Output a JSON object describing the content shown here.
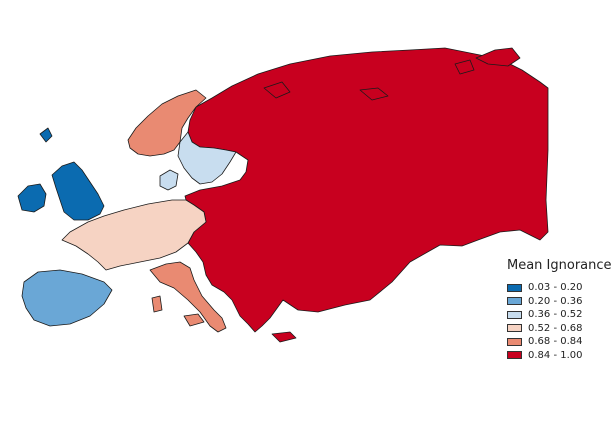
{
  "legend": {
    "title": "Mean Ignorance",
    "classes": [
      {
        "label": "0.03 - 0.20",
        "color": "#0b6bb0"
      },
      {
        "label": "0.20 - 0.36",
        "color": "#6aa7d6"
      },
      {
        "label": "0.36 - 0.52",
        "color": "#c8ddef"
      },
      {
        "label": "0.52 - 0.68",
        "color": "#f6d3c3"
      },
      {
        "label": "0.68 - 0.84",
        "color": "#e98a72"
      },
      {
        "label": "0.84 - 1.00",
        "color": "#c8001f"
      }
    ]
  },
  "regions": [
    {
      "name": "british-isles",
      "class": 0
    },
    {
      "name": "iberia",
      "class": 1
    },
    {
      "name": "sweden",
      "class": 2
    },
    {
      "name": "denmark",
      "class": 2
    },
    {
      "name": "france",
      "class": 3
    },
    {
      "name": "norway",
      "class": 4
    },
    {
      "name": "italy",
      "class": 4
    },
    {
      "name": "eastern-europe-russia",
      "class": 5
    }
  ]
}
